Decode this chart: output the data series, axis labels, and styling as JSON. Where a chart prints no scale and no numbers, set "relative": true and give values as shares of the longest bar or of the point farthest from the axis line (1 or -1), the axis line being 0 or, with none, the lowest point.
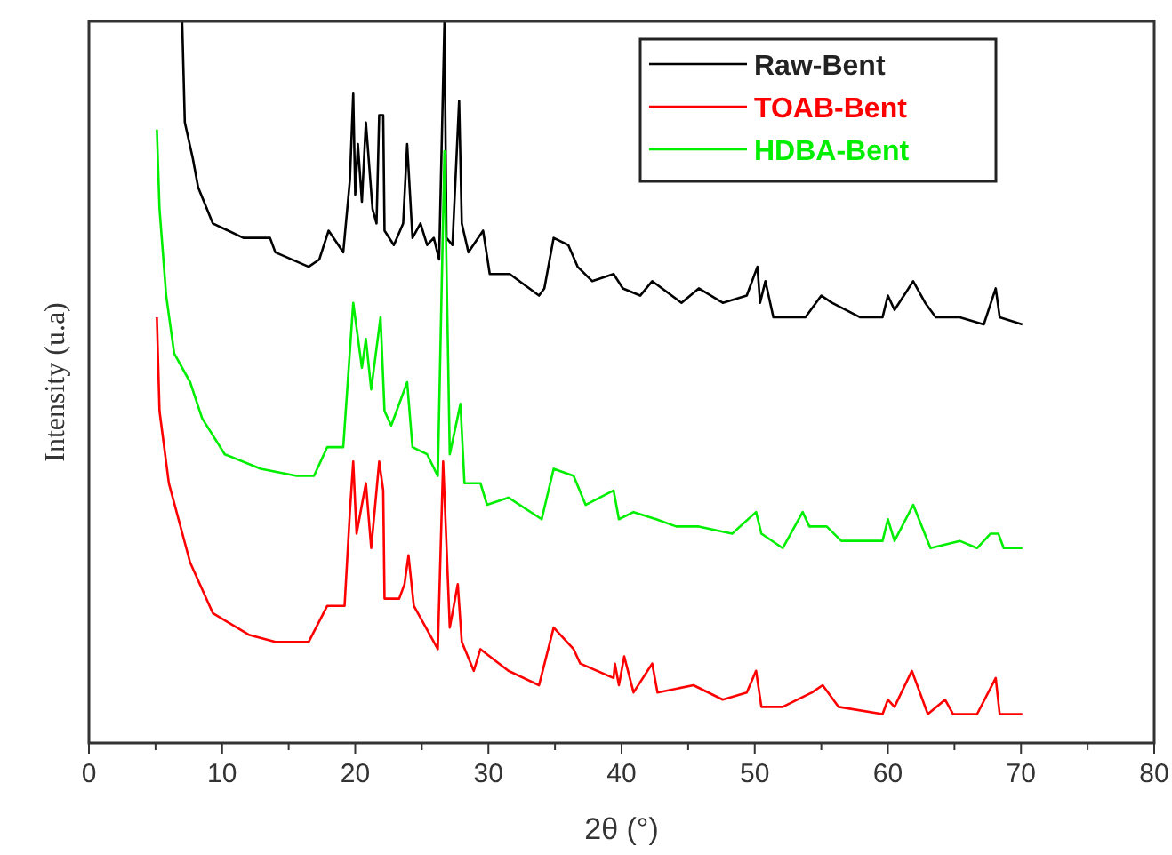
{
  "chart_data": {
    "type": "line",
    "xlabel": "2θ (°)",
    "ylabel": "Intensity (u.a)",
    "relative": true,
    "legend": "top right",
    "grid": false,
    "tick_labels": "x",
    "marker": "none",
    "line_style": "solid",
    "xlim": [
      0,
      80
    ],
    "xticks": [
      0,
      {
        "value": 5,
        "label": null
      },
      10,
      {
        "value": 15,
        "label": null
      },
      20,
      {
        "value": 25,
        "label": null
      },
      30,
      {
        "value": 35,
        "label": null
      },
      40,
      {
        "value": 45,
        "label": null
      },
      50,
      {
        "value": 55,
        "label": null
      },
      60,
      {
        "value": 65,
        "label": null
      },
      70,
      {
        "value": 75,
        "label": null
      },
      80
    ],
    "series": [
      {
        "name": "Raw-Bent",
        "color": "#000000",
        "x": [
          7.0,
          7.2,
          7.8,
          8.2,
          9.3,
          11.6,
          13.6,
          14.0,
          16.5,
          17.3,
          18.0,
          19.1,
          19.6,
          19.85,
          20.0,
          20.2,
          20.5,
          20.8,
          21.3,
          21.6,
          21.8,
          22.1,
          22.2,
          22.9,
          23.6,
          23.9,
          24.3,
          24.9,
          25.4,
          25.9,
          26.3,
          26.7,
          26.85,
          27.3,
          27.8,
          28.0,
          28.5,
          29.6,
          30.1,
          31.6,
          33.8,
          34.2,
          34.9,
          36.0,
          36.7,
          37.8,
          39.4,
          40.1,
          41.4,
          42.3,
          44.5,
          45.8,
          47.6,
          49.4,
          50.2,
          50.4,
          50.8,
          51.4,
          53.8,
          55.0,
          55.8,
          57.9,
          59.6,
          60.0,
          60.5,
          61.9,
          62.8,
          63.6,
          65.4,
          67.2,
          68.1,
          68.4,
          70.1
        ],
        "values": [
          1.0,
          0.86,
          0.81,
          0.77,
          0.72,
          0.7,
          0.7,
          0.68,
          0.66,
          0.67,
          0.71,
          0.68,
          0.78,
          0.9,
          0.76,
          0.83,
          0.75,
          0.86,
          0.74,
          0.72,
          0.87,
          0.87,
          0.71,
          0.69,
          0.72,
          0.83,
          0.7,
          0.72,
          0.69,
          0.7,
          0.67,
          1.0,
          0.7,
          0.69,
          0.89,
          0.72,
          0.68,
          0.71,
          0.65,
          0.65,
          0.62,
          0.63,
          0.7,
          0.69,
          0.66,
          0.64,
          0.65,
          0.63,
          0.62,
          0.64,
          0.61,
          0.63,
          0.61,
          0.62,
          0.66,
          0.61,
          0.64,
          0.59,
          0.59,
          0.62,
          0.61,
          0.59,
          0.59,
          0.62,
          0.6,
          0.64,
          0.61,
          0.59,
          0.59,
          0.58,
          0.63,
          0.59,
          0.58
        ]
      },
      {
        "name": "TOAB-Bent",
        "color": "#ff0000",
        "x": [
          5.1,
          5.3,
          6.0,
          7.6,
          9.3,
          12.0,
          14.0,
          16.5,
          17.9,
          19.2,
          19.6,
          19.85,
          20.1,
          20.8,
          21.2,
          21.8,
          22.1,
          22.2,
          23.3,
          23.7,
          24.0,
          24.4,
          25.6,
          26.2,
          26.6,
          27.1,
          27.7,
          28.0,
          28.9,
          29.4,
          31.5,
          33.8,
          34.9,
          36.4,
          36.9,
          39.4,
          39.5,
          39.8,
          40.2,
          40.9,
          42.3,
          42.7,
          45.4,
          47.6,
          49.4,
          50.1,
          50.5,
          52.1,
          54.3,
          55.1,
          56.3,
          59.6,
          60.0,
          60.5,
          61.8,
          63.0,
          64.3,
          64.9,
          66.7,
          68.1,
          68.4,
          70.1
        ],
        "values": [
          0.59,
          0.46,
          0.36,
          0.25,
          0.18,
          0.15,
          0.14,
          0.14,
          0.19,
          0.19,
          0.32,
          0.39,
          0.29,
          0.36,
          0.27,
          0.39,
          0.35,
          0.2,
          0.2,
          0.22,
          0.26,
          0.19,
          0.15,
          0.13,
          0.39,
          0.16,
          0.22,
          0.14,
          0.1,
          0.13,
          0.1,
          0.08,
          0.16,
          0.13,
          0.11,
          0.09,
          0.11,
          0.08,
          0.12,
          0.07,
          0.11,
          0.07,
          0.08,
          0.06,
          0.07,
          0.1,
          0.05,
          0.05,
          0.07,
          0.08,
          0.05,
          0.04,
          0.06,
          0.05,
          0.1,
          0.04,
          0.06,
          0.04,
          0.04,
          0.09,
          0.04,
          0.04
        ]
      },
      {
        "name": "HDBA-Bent",
        "color": "#00ee00",
        "x": [
          5.1,
          5.3,
          5.8,
          6.4,
          7.6,
          8.5,
          10.2,
          12.9,
          15.6,
          16.9,
          17.9,
          19.1,
          19.85,
          20.5,
          20.8,
          21.2,
          21.9,
          22.2,
          22.7,
          23.9,
          24.3,
          25.4,
          26.2,
          26.7,
          27.1,
          27.9,
          28.2,
          29.4,
          29.9,
          31.5,
          34.0,
          34.9,
          36.4,
          37.3,
          39.4,
          39.8,
          40.9,
          42.6,
          44.1,
          45.8,
          48.3,
          50.1,
          50.5,
          52.1,
          53.6,
          54.1,
          55.4,
          56.5,
          59.6,
          60.0,
          60.5,
          61.9,
          63.2,
          65.4,
          66.7,
          67.7,
          68.3,
          68.7,
          70.1
        ],
        "values": [
          0.85,
          0.74,
          0.62,
          0.54,
          0.5,
          0.45,
          0.4,
          0.38,
          0.37,
          0.37,
          0.41,
          0.41,
          0.61,
          0.52,
          0.56,
          0.49,
          0.59,
          0.46,
          0.44,
          0.5,
          0.41,
          0.4,
          0.37,
          0.82,
          0.4,
          0.47,
          0.36,
          0.36,
          0.33,
          0.34,
          0.31,
          0.38,
          0.37,
          0.33,
          0.35,
          0.31,
          0.32,
          0.31,
          0.3,
          0.3,
          0.29,
          0.32,
          0.29,
          0.27,
          0.32,
          0.3,
          0.3,
          0.28,
          0.28,
          0.31,
          0.28,
          0.33,
          0.27,
          0.28,
          0.27,
          0.29,
          0.29,
          0.27,
          0.27
        ]
      }
    ]
  }
}
